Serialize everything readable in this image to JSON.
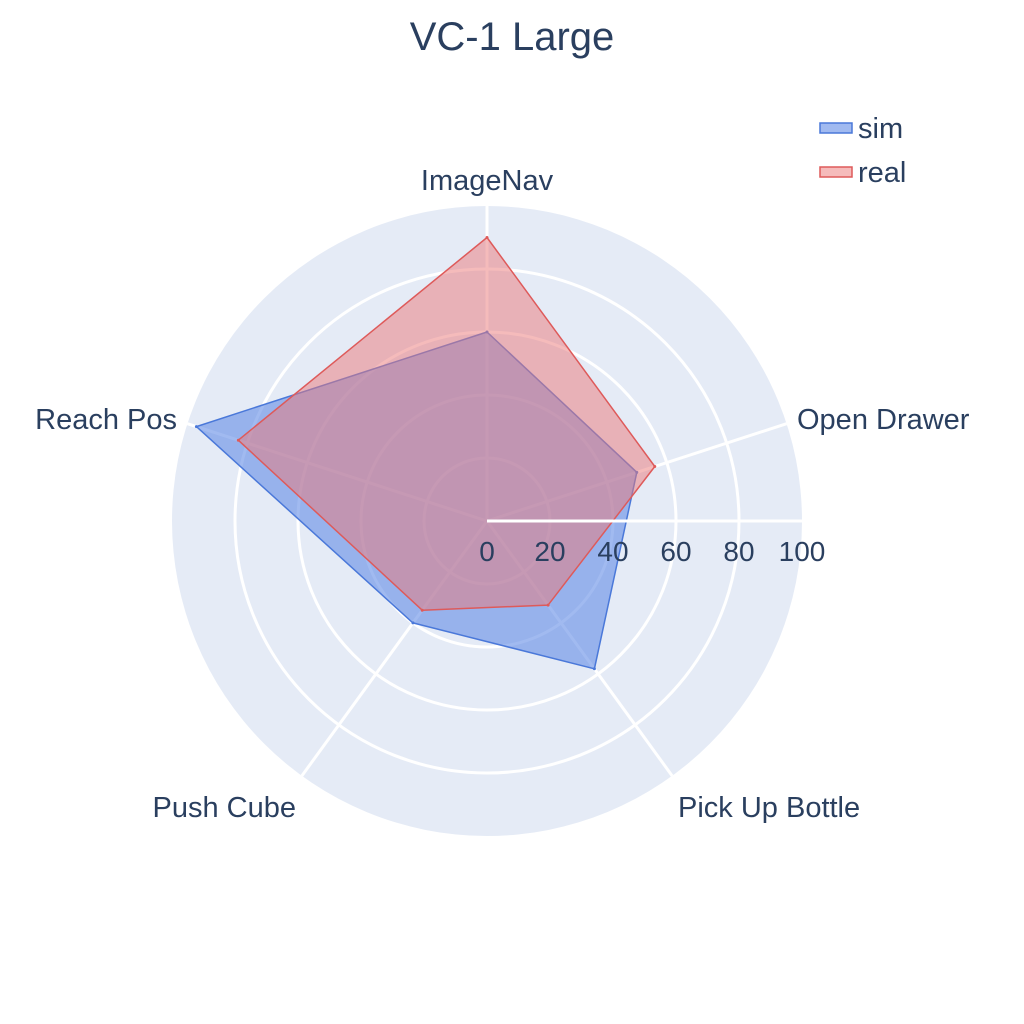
{
  "chart_data": {
    "type": "radar",
    "title": "VC-1 Large",
    "categories": [
      "ImageNav",
      "Open Drawer",
      "Pick Up Bottle",
      "Push Cube",
      "Reach Pos"
    ],
    "radial_range": [
      0,
      100
    ],
    "radial_ticks": [
      "0",
      "20",
      "40",
      "60",
      "80",
      "100"
    ],
    "legend_position": "top-right",
    "series": [
      {
        "name": "sim",
        "values": [
          60,
          50,
          58,
          40,
          97
        ],
        "color": "#4a78d9",
        "fill": "rgba(99,140,230,0.6)"
      },
      {
        "name": "real",
        "values": [
          90,
          56,
          33,
          35,
          83
        ],
        "color": "#de5a5a",
        "fill": "rgba(236,120,120,0.5)"
      }
    ],
    "colors": {
      "polar_bg": "#e5ebf6",
      "grid": "#ffffff",
      "text": "#2a3f5f"
    }
  }
}
